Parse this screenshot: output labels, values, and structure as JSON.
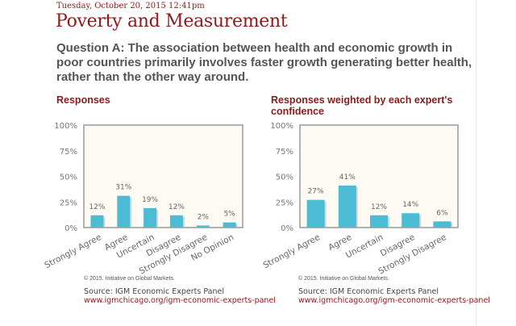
{
  "date": "Tuesday, October 20, 2015 12:41pm",
  "title": "Poverty and Measurement",
  "question": "Question A: The association between health and economic growth in poor countries primarily involves faster growth generating better health, rather than the other way around.",
  "colors": {
    "bar": "#4bbcd3",
    "accent": "#8b1a1a",
    "plot_bg": "#fdfaf4"
  },
  "chart_data": [
    {
      "type": "bar",
      "title": "Responses",
      "categories": [
        "Strongly Agree",
        "Agree",
        "Uncertain",
        "Disagree",
        "Strongly Disagree",
        "No Opinion"
      ],
      "values": [
        12,
        31,
        19,
        12,
        2,
        5
      ],
      "labels": [
        "12%",
        "31%",
        "19%",
        "12%",
        "2%",
        "5%"
      ],
      "yticks": [
        "0%",
        "25%",
        "50%",
        "75%",
        "100%"
      ],
      "ylim": [
        0,
        100
      ],
      "copyright": "© 2015. Initiative on Global Markets.",
      "source": "Source: IGM Economic Experts Panel",
      "link": "www.igmchicago.org/igm-economic-experts-panel"
    },
    {
      "type": "bar",
      "title": "Responses weighted by each expert's confidence",
      "categories": [
        "Strongly Agree",
        "Agree",
        "Uncertain",
        "Disagree",
        "Strongly Disagree"
      ],
      "values": [
        27,
        41,
        12,
        14,
        6
      ],
      "labels": [
        "27%",
        "41%",
        "12%",
        "14%",
        "6%"
      ],
      "yticks": [
        "0%",
        "25%",
        "50%",
        "75%",
        "100%"
      ],
      "ylim": [
        0,
        100
      ],
      "copyright": "© 2015. Initiative on Global Markets.",
      "source": "Source: IGM Economic Experts Panel",
      "link": "www.igmchicago.org/igm-economic-experts-panel"
    }
  ]
}
